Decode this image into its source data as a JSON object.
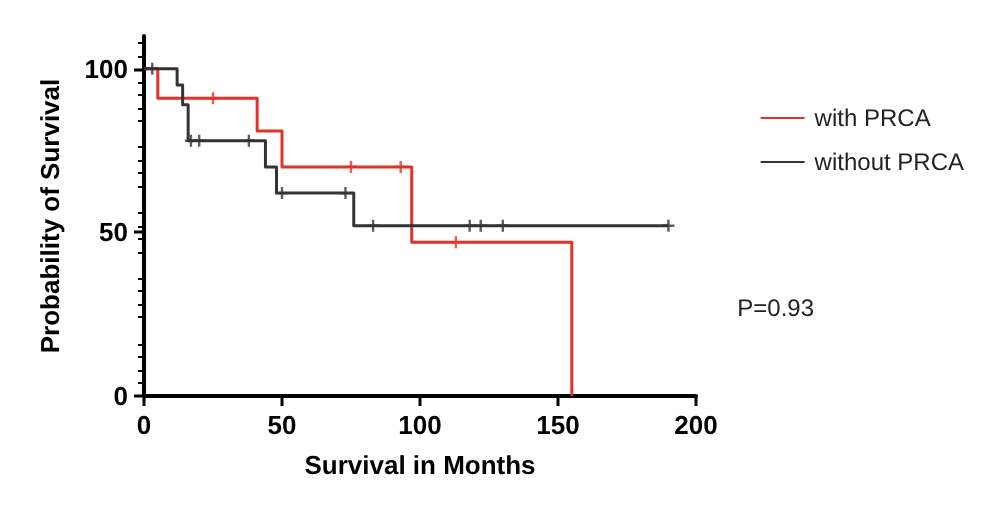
{
  "chart_data": {
    "type": "step",
    "xlabel": "Survival in Months",
    "ylabel": "Probability of Survival",
    "xlim": [
      0,
      200
    ],
    "xticks": [
      0,
      50,
      100,
      150,
      200
    ],
    "ylim": [
      0,
      110
    ],
    "yticks": [
      0,
      50,
      100
    ],
    "legend": "right",
    "grid": false,
    "marker": "none",
    "annotations": [
      "P=0.93"
    ],
    "series": [
      {
        "name": "with PRCA",
        "color": "#e8302a",
        "x": [
          0,
          5,
          41,
          50,
          97,
          155
        ],
        "values": [
          100,
          91,
          81,
          70,
          47,
          0
        ]
      },
      {
        "name": "without PRCA",
        "color": "#333333",
        "x": [
          0,
          12,
          14,
          16,
          44,
          48,
          76,
          190
        ],
        "values": [
          100,
          95,
          89,
          78,
          70,
          62,
          52,
          52
        ]
      },
      {
        "type": "scatter",
        "marker": "cross",
        "color": "#e8302a",
        "x": [
          25,
          75,
          93,
          113
        ],
        "values": [
          91,
          70,
          70,
          47
        ]
      },
      {
        "type": "scatter",
        "marker": "cross",
        "color": "#333333",
        "x": [
          3,
          17,
          20,
          38,
          50,
          73,
          83,
          118,
          122,
          130,
          190
        ],
        "values": [
          100,
          78,
          78,
          78,
          62,
          62,
          52,
          52,
          52,
          52,
          52
        ]
      }
    ]
  }
}
